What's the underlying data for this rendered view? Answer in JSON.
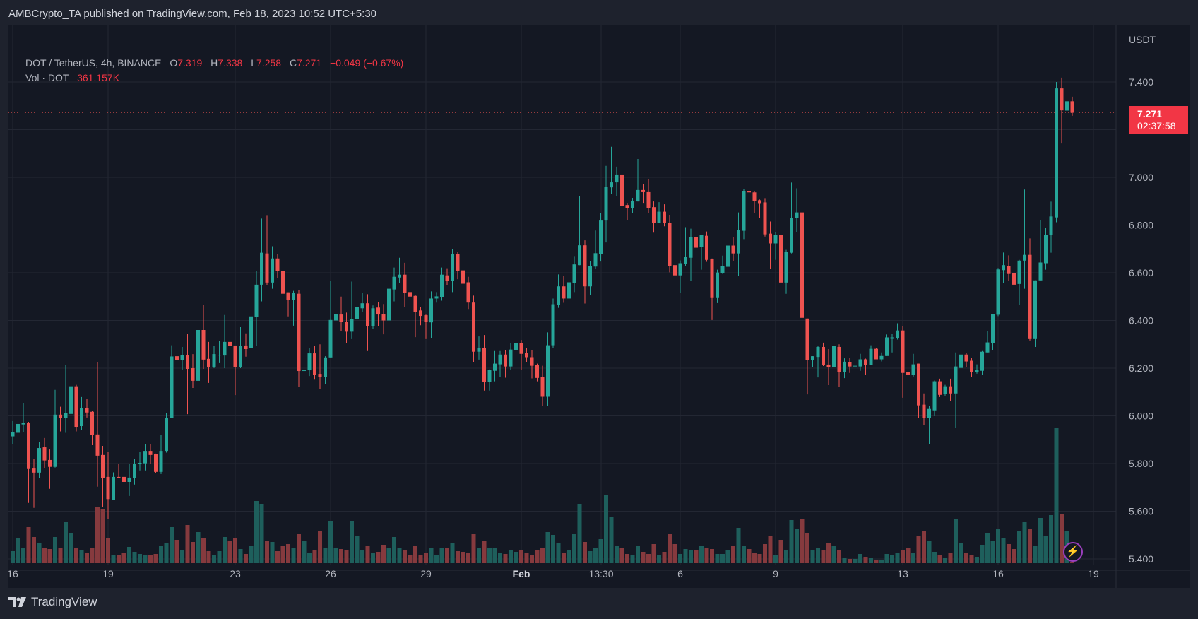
{
  "published": "AMBCrypto_TA published on TradingView.com, Feb 18, 2023 10:52 UTC+5:30",
  "legend": {
    "symbol": "DOT / TetherUS, 4h, BINANCE",
    "open_label": "O",
    "open": "7.319",
    "high_label": "H",
    "high": "7.338",
    "low_label": "L",
    "low": "7.258",
    "close_label": "C",
    "close": "7.271",
    "change": "−0.049 (−0.67%)",
    "vol_label": "Vol · DOT",
    "vol_value": "361.157K"
  },
  "last_price": {
    "price": "7.271",
    "countdown": "02:37:58",
    "color": "#f23645"
  },
  "footer": {
    "brand": "TradingView"
  },
  "colors": {
    "up": "#26a69a",
    "down": "#ef5350",
    "vol_up": "#1e5f5c",
    "vol_down": "#863a3e",
    "background": "#141823",
    "grid": "#232733"
  },
  "chart_data": {
    "type": "candlestick",
    "interval": "4h",
    "currency": "USDT",
    "ylim": [
      5.4,
      7.4
    ],
    "y_ticks": [
      "7.400",
      "7.000",
      "6.800",
      "6.600",
      "6.400",
      "6.200",
      "6.000",
      "5.800",
      "5.600",
      "5.400"
    ],
    "x_ticks": [
      "16",
      "19",
      "23",
      "26",
      "29",
      "Feb",
      "13:30",
      "6",
      "9",
      "13",
      "16",
      "19"
    ],
    "grid": true,
    "volume_unit": "K",
    "candles_ohlc": [
      [
        5.914,
        5.978,
        5.881,
        5.931
      ],
      [
        5.929,
        6.088,
        5.862,
        5.966
      ],
      [
        5.964,
        6.052,
        5.932,
        5.969
      ],
      [
        5.969,
        5.975,
        5.635,
        5.777
      ],
      [
        5.779,
        5.818,
        5.614,
        5.762
      ],
      [
        5.762,
        5.892,
        5.739,
        5.865
      ],
      [
        5.868,
        5.907,
        5.782,
        5.813
      ],
      [
        5.815,
        5.859,
        5.694,
        5.786
      ],
      [
        5.786,
        6.109,
        5.783,
        6.005
      ],
      [
        6.005,
        6.038,
        5.935,
        5.99
      ],
      [
        5.99,
        6.213,
        5.929,
        6.011
      ],
      [
        6.008,
        6.13,
        5.935,
        6.124
      ],
      [
        6.124,
        6.13,
        5.935,
        5.954
      ],
      [
        5.957,
        6.079,
        5.94,
        6.032
      ],
      [
        6.032,
        6.07,
        5.993,
        6.014
      ],
      [
        6.017,
        6.02,
        5.877,
        5.919
      ],
      [
        5.922,
        6.225,
        5.703,
        5.833
      ],
      [
        5.836,
        5.874,
        5.617,
        5.739
      ],
      [
        5.744,
        5.85,
        5.566,
        5.651
      ],
      [
        5.648,
        5.763,
        5.647,
        5.744
      ],
      [
        5.744,
        5.8,
        5.739,
        5.74
      ],
      [
        5.744,
        5.8,
        5.709,
        5.723
      ],
      [
        5.723,
        5.8,
        5.664,
        5.741
      ],
      [
        5.739,
        5.82,
        5.712,
        5.8
      ],
      [
        5.798,
        5.85,
        5.771,
        5.803
      ],
      [
        5.801,
        5.883,
        5.771,
        5.853
      ],
      [
        5.853,
        5.88,
        5.8,
        5.836
      ],
      [
        5.839,
        5.842,
        5.759,
        5.765
      ],
      [
        5.765,
        5.919,
        5.756,
        5.853
      ],
      [
        5.853,
        6.011,
        5.846,
        5.991
      ],
      [
        5.991,
        6.296,
        5.991,
        6.249
      ],
      [
        6.25,
        6.316,
        6.158,
        6.233
      ],
      [
        6.233,
        6.289,
        6.194,
        6.256
      ],
      [
        6.256,
        6.343,
        6.007,
        6.197
      ],
      [
        6.2,
        6.259,
        6.117,
        6.147
      ],
      [
        6.147,
        6.402,
        6.147,
        6.36
      ],
      [
        6.36,
        6.464,
        6.197,
        6.236
      ],
      [
        6.239,
        6.31,
        6.138,
        6.206
      ],
      [
        6.206,
        6.295,
        6.2,
        6.259
      ],
      [
        6.256,
        6.313,
        6.221,
        6.256
      ],
      [
        6.253,
        6.423,
        6.2,
        6.31
      ],
      [
        6.31,
        6.458,
        6.259,
        6.292
      ],
      [
        6.295,
        6.295,
        6.087,
        6.206
      ],
      [
        6.206,
        6.372,
        6.2,
        6.292
      ],
      [
        6.295,
        6.346,
        6.248,
        6.28
      ],
      [
        6.283,
        6.417,
        6.265,
        6.417
      ],
      [
        6.414,
        6.607,
        6.295,
        6.55
      ],
      [
        6.55,
        6.827,
        6.48,
        6.684
      ],
      [
        6.681,
        6.842,
        6.548,
        6.559
      ],
      [
        6.559,
        6.711,
        6.533,
        6.66
      ],
      [
        6.66,
        6.678,
        6.577,
        6.607
      ],
      [
        6.607,
        6.654,
        6.473,
        6.512
      ],
      [
        6.518,
        6.518,
        6.417,
        6.485
      ],
      [
        6.485,
        6.524,
        6.378,
        6.515
      ],
      [
        6.512,
        6.527,
        6.12,
        6.188
      ],
      [
        6.191,
        6.209,
        6.01,
        6.191
      ],
      [
        6.191,
        6.286,
        6.167,
        6.262
      ],
      [
        6.262,
        6.295,
        6.152,
        6.173
      ],
      [
        6.176,
        6.3,
        6.111,
        6.164
      ],
      [
        6.164,
        6.25,
        6.132,
        6.245
      ],
      [
        6.245,
        6.565,
        6.245,
        6.402
      ],
      [
        6.4,
        6.5,
        6.393,
        6.426
      ],
      [
        6.425,
        6.5,
        6.357,
        6.393
      ],
      [
        6.395,
        6.433,
        6.305,
        6.353
      ],
      [
        6.353,
        6.563,
        6.322,
        6.407
      ],
      [
        6.405,
        6.49,
        6.322,
        6.457
      ],
      [
        6.451,
        6.516,
        6.436,
        6.472
      ],
      [
        6.472,
        6.51,
        6.272,
        6.375
      ],
      [
        6.375,
        6.463,
        6.363,
        6.451
      ],
      [
        6.454,
        6.477,
        6.375,
        6.425
      ],
      [
        6.427,
        6.469,
        6.342,
        6.4
      ],
      [
        6.4,
        6.536,
        6.4,
        6.533
      ],
      [
        6.53,
        6.622,
        6.48,
        6.583
      ],
      [
        6.58,
        6.663,
        6.557,
        6.592
      ],
      [
        6.592,
        6.642,
        6.457,
        6.516
      ],
      [
        6.519,
        6.53,
        6.466,
        6.5
      ],
      [
        6.503,
        6.506,
        6.33,
        6.436
      ],
      [
        6.442,
        6.457,
        6.38,
        6.419
      ],
      [
        6.422,
        6.425,
        6.322,
        6.395
      ],
      [
        6.392,
        6.522,
        6.327,
        6.492
      ],
      [
        6.492,
        6.519,
        6.475,
        6.501
      ],
      [
        6.498,
        6.622,
        6.483,
        6.592
      ],
      [
        6.589,
        6.619,
        6.548,
        6.566
      ],
      [
        6.566,
        6.698,
        6.519,
        6.68
      ],
      [
        6.68,
        6.689,
        6.573,
        6.607
      ],
      [
        6.61,
        6.648,
        6.519,
        6.554
      ],
      [
        6.56,
        6.583,
        6.448,
        6.475
      ],
      [
        6.475,
        6.504,
        6.225,
        6.269
      ],
      [
        6.269,
        6.333,
        6.236,
        6.286
      ],
      [
        6.286,
        6.339,
        6.106,
        6.142
      ],
      [
        6.142,
        6.195,
        6.106,
        6.192
      ],
      [
        6.189,
        6.272,
        6.145,
        6.219
      ],
      [
        6.216,
        6.272,
        6.163,
        6.257
      ],
      [
        6.257,
        6.275,
        6.16,
        6.207
      ],
      [
        6.207,
        6.305,
        6.193,
        6.278
      ],
      [
        6.275,
        6.332,
        6.263,
        6.305
      ],
      [
        6.305,
        6.318,
        6.193,
        6.26
      ],
      [
        6.263,
        6.284,
        6.225,
        6.246
      ],
      [
        6.246,
        6.275,
        6.157,
        6.21
      ],
      [
        6.213,
        6.219,
        6.145,
        6.159
      ],
      [
        6.162,
        6.21,
        6.04,
        6.08
      ],
      [
        6.08,
        6.35,
        6.04,
        6.296
      ],
      [
        6.296,
        6.492,
        6.284,
        6.468
      ],
      [
        6.465,
        6.593,
        6.453,
        6.543
      ],
      [
        6.543,
        6.587,
        6.474,
        6.492
      ],
      [
        6.492,
        6.575,
        6.486,
        6.56
      ],
      [
        6.557,
        6.67,
        6.519,
        6.635
      ],
      [
        6.632,
        6.92,
        6.632,
        6.715
      ],
      [
        6.715,
        6.736,
        6.471,
        6.543
      ],
      [
        6.543,
        6.65,
        6.507,
        6.629
      ],
      [
        6.626,
        6.777,
        6.617,
        6.682
      ],
      [
        6.679,
        6.851,
        6.647,
        6.819
      ],
      [
        6.819,
        7.048,
        6.727,
        6.961
      ],
      [
        6.958,
        7.128,
        6.932,
        6.979
      ],
      [
        6.979,
        7.045,
        6.923,
        7.012
      ],
      [
        7.012,
        7.045,
        6.875,
        6.881
      ],
      [
        6.884,
        6.893,
        6.822,
        6.872
      ],
      [
        6.872,
        6.914,
        6.852,
        6.902
      ],
      [
        6.899,
        7.077,
        6.899,
        6.947
      ],
      [
        6.947,
        6.973,
        6.893,
        6.938
      ],
      [
        6.938,
        6.991,
        6.852,
        6.872
      ],
      [
        6.875,
        6.899,
        6.768,
        6.81
      ],
      [
        6.81,
        6.896,
        6.81,
        6.856
      ],
      [
        6.856,
        6.887,
        6.795,
        6.81
      ],
      [
        6.81,
        6.843,
        6.602,
        6.629
      ],
      [
        6.632,
        6.673,
        6.537,
        6.589
      ],
      [
        6.589,
        6.652,
        6.515,
        6.64
      ],
      [
        6.637,
        6.791,
        6.628,
        6.666
      ],
      [
        6.663,
        6.785,
        6.565,
        6.75
      ],
      [
        6.75,
        6.776,
        6.607,
        6.705
      ],
      [
        6.708,
        6.758,
        6.613,
        6.758
      ],
      [
        6.755,
        6.773,
        6.646,
        6.654
      ],
      [
        6.657,
        6.66,
        6.402,
        6.494
      ],
      [
        6.494,
        6.613,
        6.473,
        6.601
      ],
      [
        6.598,
        6.672,
        6.595,
        6.628
      ],
      [
        6.625,
        6.735,
        6.601,
        6.714
      ],
      [
        6.714,
        6.75,
        6.649,
        6.681
      ],
      [
        6.681,
        6.853,
        6.586,
        6.779
      ],
      [
        6.776,
        6.951,
        6.741,
        6.943
      ],
      [
        6.943,
        7.023,
        6.925,
        6.937
      ],
      [
        6.937,
        6.943,
        6.85,
        6.901
      ],
      [
        6.904,
        6.907,
        6.83,
        6.892
      ],
      [
        6.895,
        6.913,
        6.752,
        6.761
      ],
      [
        6.764,
        6.815,
        6.616,
        6.723
      ],
      [
        6.723,
        6.77,
        6.654,
        6.759
      ],
      [
        6.759,
        6.871,
        6.515,
        6.559
      ],
      [
        6.559,
        6.696,
        6.512,
        6.687
      ],
      [
        6.684,
        6.978,
        6.681,
        6.83
      ],
      [
        6.83,
        6.954,
        6.77,
        6.853
      ],
      [
        6.853,
        6.895,
        6.265,
        6.411
      ],
      [
        6.408,
        6.408,
        6.09,
        6.233
      ],
      [
        6.233,
        6.25,
        6.206,
        6.25
      ],
      [
        6.247,
        6.295,
        6.161,
        6.289
      ],
      [
        6.289,
        6.307,
        6.209,
        6.212
      ],
      [
        6.215,
        6.28,
        6.129,
        6.203
      ],
      [
        6.203,
        6.31,
        6.147,
        6.292
      ],
      [
        6.289,
        6.3,
        6.122,
        6.185
      ],
      [
        6.185,
        6.241,
        6.158,
        6.227
      ],
      [
        6.225,
        6.243,
        6.18,
        6.207
      ],
      [
        6.21,
        6.225,
        6.195,
        6.21
      ],
      [
        6.207,
        6.26,
        6.189,
        6.237
      ],
      [
        6.237,
        6.24,
        6.171,
        6.213
      ],
      [
        6.213,
        6.296,
        6.213,
        6.281
      ],
      [
        6.281,
        6.284,
        6.237,
        6.237
      ],
      [
        6.237,
        6.266,
        6.228,
        6.251
      ],
      [
        6.251,
        6.341,
        6.251,
        6.329
      ],
      [
        6.323,
        6.344,
        6.266,
        6.329
      ],
      [
        6.326,
        6.388,
        6.32,
        6.358
      ],
      [
        6.358,
        6.376,
        6.076,
        6.18
      ],
      [
        6.183,
        6.222,
        6.044,
        6.171
      ],
      [
        6.171,
        6.26,
        6.165,
        6.216
      ],
      [
        6.219,
        6.219,
        5.99,
        6.044
      ],
      [
        6.047,
        6.094,
        5.96,
        5.99
      ],
      [
        5.99,
        6.04,
        5.88,
        6.029
      ],
      [
        6.023,
        6.148,
        5.999,
        6.145
      ],
      [
        6.145,
        6.156,
        6.079,
        6.088
      ],
      [
        6.091,
        6.13,
        6.085,
        6.124
      ],
      [
        6.124,
        6.156,
        6.061,
        6.094
      ],
      [
        6.094,
        6.266,
        5.95,
        6.207
      ],
      [
        6.201,
        6.257,
        6.038,
        6.257
      ],
      [
        6.257,
        6.263,
        6.204,
        6.228
      ],
      [
        6.231,
        6.243,
        6.162,
        6.183
      ],
      [
        6.183,
        6.216,
        6.177,
        6.191
      ],
      [
        6.189,
        6.272,
        6.171,
        6.269
      ],
      [
        6.266,
        6.355,
        6.266,
        6.308
      ],
      [
        6.305,
        6.427,
        6.275,
        6.427
      ],
      [
        6.424,
        6.62,
        6.418,
        6.614
      ],
      [
        6.611,
        6.685,
        6.557,
        6.632
      ],
      [
        6.628,
        6.673,
        6.566,
        6.595
      ],
      [
        6.598,
        6.629,
        6.53,
        6.55
      ],
      [
        6.553,
        6.654,
        6.464,
        6.651
      ],
      [
        6.651,
        6.949,
        6.533,
        6.675
      ],
      [
        6.675,
        6.744,
        6.316,
        6.322
      ],
      [
        6.322,
        6.568,
        6.289,
        6.568
      ],
      [
        6.568,
        6.821,
        6.568,
        6.643
      ],
      [
        6.64,
        6.788,
        6.613,
        6.76
      ],
      [
        6.757,
        6.898,
        6.684,
        6.836
      ],
      [
        6.832,
        7.4,
        6.812,
        7.373
      ],
      [
        7.373,
        7.418,
        7.142,
        7.281
      ],
      [
        7.28,
        7.373,
        7.163,
        7.319
      ],
      [
        7.319,
        7.338,
        7.258,
        7.271
      ]
    ],
    "volumes": [
      3060,
      6300,
      3960,
      9180,
      6660,
      5040,
      3960,
      3600,
      6660,
      3960,
      10440,
      7740,
      3780,
      3420,
      2700,
      3780,
      14220,
      13860,
      6480,
      1980,
      2160,
      2520,
      4140,
      2880,
      2340,
      1980,
      2160,
      2340,
      4320,
      5040,
      9180,
      5940,
      3240,
      9720,
      5400,
      7920,
      6300,
      3060,
      1980,
      3060,
      6660,
      5580,
      6480,
      3600,
      2340,
      4320,
      15840,
      15120,
      5760,
      5400,
      3060,
      4320,
      4860,
      3960,
      7380,
      5760,
      2520,
      3420,
      8100,
      3780,
      10800,
      3780,
      3600,
      3240,
      10800,
      6840,
      3420,
      4320,
      2520,
      2880,
      4680,
      3780,
      6660,
      3960,
      3420,
      1980,
      4500,
      2160,
      2520,
      3960,
      2160,
      3960,
      3960,
      5220,
      3060,
      2880,
      2700,
      7380,
      3780,
      5580,
      3780,
      3780,
      2700,
      2340,
      3240,
      2880,
      3420,
      2520,
      1980,
      3420,
      3960,
      7920,
      7200,
      5040,
      2700,
      3240,
      7380,
      15120,
      5400,
      3060,
      3960,
      6120,
      17280,
      11880,
      4320,
      3960,
      2340,
      1980,
      4500,
      2880,
      2340,
      4860,
      1980,
      2880,
      7380,
      4860,
      2340,
      3600,
      3240,
      3240,
      4320,
      3960,
      3600,
      2340,
      2340,
      3240,
      4500,
      9000,
      4320,
      3600,
      2700,
      2340,
      4860,
      7020,
      2160,
      5940,
      3420,
      10980,
      8640,
      11160,
      7560,
      3420,
      3960,
      3240,
      5220,
      4500,
      3240,
      1440,
      1080,
      1080,
      2340,
      1620,
      1440,
      900,
      900,
      2340,
      1980,
      2700,
      3240,
      3780,
      2700,
      6840,
      8100,
      5580,
      2880,
      2160,
      1440,
      2700,
      11340,
      5040,
      2520,
      2160,
      1620,
      4680,
      7740,
      5760,
      8820,
      6300,
      4860,
      3600,
      8100,
      10440,
      8820,
      4320,
      11520,
      7020,
      12240,
      34380,
      12420,
      8100,
      361.157
    ]
  }
}
